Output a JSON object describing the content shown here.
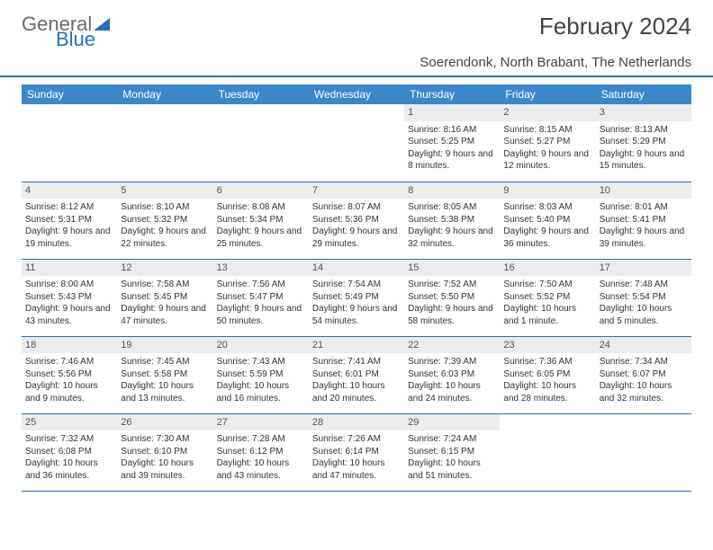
{
  "logo": {
    "textA": "General",
    "textB": "Blue"
  },
  "title": "February 2024",
  "location": "Soerendonk, North Brabant, The Netherlands",
  "colors": {
    "header_bg": "#3b87c8",
    "accent_border": "#2a6db8",
    "daynum_bg": "#ececec",
    "text": "#333333"
  },
  "day_headers": [
    "Sunday",
    "Monday",
    "Tuesday",
    "Wednesday",
    "Thursday",
    "Friday",
    "Saturday"
  ],
  "weeks": [
    [
      {
        "empty": true
      },
      {
        "empty": true
      },
      {
        "empty": true
      },
      {
        "empty": true
      },
      {
        "day": "1",
        "sunrise": "8:16 AM",
        "sunset": "5:25 PM",
        "daylight": "9 hours and 8 minutes."
      },
      {
        "day": "2",
        "sunrise": "8:15 AM",
        "sunset": "5:27 PM",
        "daylight": "9 hours and 12 minutes."
      },
      {
        "day": "3",
        "sunrise": "8:13 AM",
        "sunset": "5:29 PM",
        "daylight": "9 hours and 15 minutes."
      }
    ],
    [
      {
        "day": "4",
        "sunrise": "8:12 AM",
        "sunset": "5:31 PM",
        "daylight": "9 hours and 19 minutes."
      },
      {
        "day": "5",
        "sunrise": "8:10 AM",
        "sunset": "5:32 PM",
        "daylight": "9 hours and 22 minutes."
      },
      {
        "day": "6",
        "sunrise": "8:08 AM",
        "sunset": "5:34 PM",
        "daylight": "9 hours and 25 minutes."
      },
      {
        "day": "7",
        "sunrise": "8:07 AM",
        "sunset": "5:36 PM",
        "daylight": "9 hours and 29 minutes."
      },
      {
        "day": "8",
        "sunrise": "8:05 AM",
        "sunset": "5:38 PM",
        "daylight": "9 hours and 32 minutes."
      },
      {
        "day": "9",
        "sunrise": "8:03 AM",
        "sunset": "5:40 PM",
        "daylight": "9 hours and 36 minutes."
      },
      {
        "day": "10",
        "sunrise": "8:01 AM",
        "sunset": "5:41 PM",
        "daylight": "9 hours and 39 minutes."
      }
    ],
    [
      {
        "day": "11",
        "sunrise": "8:00 AM",
        "sunset": "5:43 PM",
        "daylight": "9 hours and 43 minutes."
      },
      {
        "day": "12",
        "sunrise": "7:58 AM",
        "sunset": "5:45 PM",
        "daylight": "9 hours and 47 minutes."
      },
      {
        "day": "13",
        "sunrise": "7:56 AM",
        "sunset": "5:47 PM",
        "daylight": "9 hours and 50 minutes."
      },
      {
        "day": "14",
        "sunrise": "7:54 AM",
        "sunset": "5:49 PM",
        "daylight": "9 hours and 54 minutes."
      },
      {
        "day": "15",
        "sunrise": "7:52 AM",
        "sunset": "5:50 PM",
        "daylight": "9 hours and 58 minutes."
      },
      {
        "day": "16",
        "sunrise": "7:50 AM",
        "sunset": "5:52 PM",
        "daylight": "10 hours and 1 minute."
      },
      {
        "day": "17",
        "sunrise": "7:48 AM",
        "sunset": "5:54 PM",
        "daylight": "10 hours and 5 minutes."
      }
    ],
    [
      {
        "day": "18",
        "sunrise": "7:46 AM",
        "sunset": "5:56 PM",
        "daylight": "10 hours and 9 minutes."
      },
      {
        "day": "19",
        "sunrise": "7:45 AM",
        "sunset": "5:58 PM",
        "daylight": "10 hours and 13 minutes."
      },
      {
        "day": "20",
        "sunrise": "7:43 AM",
        "sunset": "5:59 PM",
        "daylight": "10 hours and 16 minutes."
      },
      {
        "day": "21",
        "sunrise": "7:41 AM",
        "sunset": "6:01 PM",
        "daylight": "10 hours and 20 minutes."
      },
      {
        "day": "22",
        "sunrise": "7:39 AM",
        "sunset": "6:03 PM",
        "daylight": "10 hours and 24 minutes."
      },
      {
        "day": "23",
        "sunrise": "7:36 AM",
        "sunset": "6:05 PM",
        "daylight": "10 hours and 28 minutes."
      },
      {
        "day": "24",
        "sunrise": "7:34 AM",
        "sunset": "6:07 PM",
        "daylight": "10 hours and 32 minutes."
      }
    ],
    [
      {
        "day": "25",
        "sunrise": "7:32 AM",
        "sunset": "6:08 PM",
        "daylight": "10 hours and 36 minutes."
      },
      {
        "day": "26",
        "sunrise": "7:30 AM",
        "sunset": "6:10 PM",
        "daylight": "10 hours and 39 minutes."
      },
      {
        "day": "27",
        "sunrise": "7:28 AM",
        "sunset": "6:12 PM",
        "daylight": "10 hours and 43 minutes."
      },
      {
        "day": "28",
        "sunrise": "7:26 AM",
        "sunset": "6:14 PM",
        "daylight": "10 hours and 47 minutes."
      },
      {
        "day": "29",
        "sunrise": "7:24 AM",
        "sunset": "6:15 PM",
        "daylight": "10 hours and 51 minutes."
      },
      {
        "empty": true
      },
      {
        "empty": true
      }
    ]
  ],
  "labels": {
    "sunrise": "Sunrise: ",
    "sunset": "Sunset: ",
    "daylight": "Daylight: "
  }
}
